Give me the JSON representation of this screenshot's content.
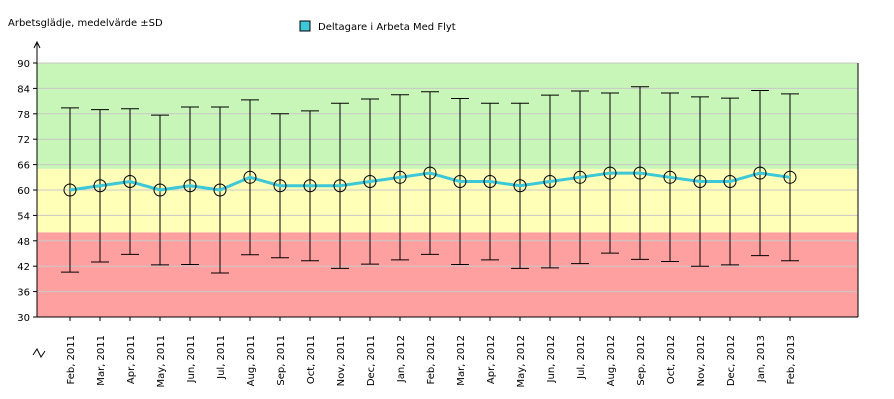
{
  "chart_data": {
    "type": "line",
    "y_axis_title": "Arbetsglädje, medelvärde ±SD",
    "categories": [
      "Feb, 2011",
      "Mar, 2011",
      "Apr, 2011",
      "May, 2011",
      "Jun, 2011",
      "Jul, 2011",
      "Aug, 2011",
      "Sep, 2011",
      "Oct, 2011",
      "Nov, 2011",
      "Dec, 2011",
      "Jan, 2012",
      "Feb, 2012",
      "Mar, 2012",
      "Apr, 2012",
      "May, 2012",
      "Jun, 2012",
      "Jul, 2012",
      "Aug, 2012",
      "Sep, 2012",
      "Oct, 2012",
      "Nov, 2012",
      "Dec, 2012",
      "Jan, 2013",
      "Feb, 2013"
    ],
    "series": [
      {
        "name": "Deltagare i Arbeta Med Flyt",
        "color": "#3cc8d8",
        "values": [
          60,
          61,
          62,
          60,
          61,
          60,
          63,
          61,
          61,
          61,
          62,
          63,
          64,
          62,
          62,
          61,
          62,
          63,
          64,
          64,
          63,
          62,
          62,
          64,
          63
        ],
        "errors": [
          19.4,
          18,
          17.2,
          17.7,
          18.6,
          19.6,
          18.3,
          17,
          17.7,
          19.5,
          19.5,
          19.5,
          19.2,
          19.6,
          18.5,
          19.5,
          20.4,
          20.4,
          18.9,
          20.4,
          19.9,
          20,
          19.7,
          19.5,
          19.7
        ]
      }
    ],
    "ylim": [
      30,
      90
    ],
    "yticks": [
      30,
      36,
      42,
      48,
      54,
      60,
      66,
      72,
      78,
      84,
      90
    ],
    "grid": true,
    "bands": [
      {
        "from": 30,
        "to": 50,
        "color": "#ffa0a0"
      },
      {
        "from": 50,
        "to": 65,
        "color": "#ffffb8"
      },
      {
        "from": 65,
        "to": 90,
        "color": "#c8f5b8"
      }
    ],
    "legend": "top"
  }
}
